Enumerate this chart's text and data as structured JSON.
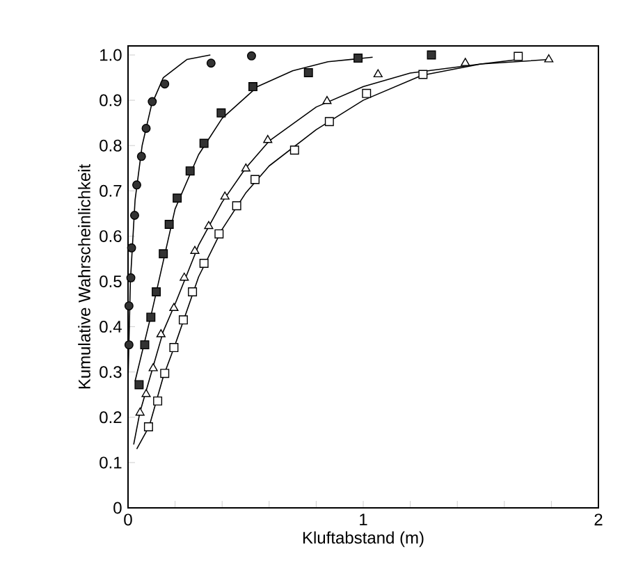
{
  "chart_data": {
    "type": "scatter",
    "xlabel": "Kluftabstand (m)",
    "ylabel": "Kumulative Wahrscheinlichkeit",
    "xlim": [
      0,
      2
    ],
    "ylim": [
      0,
      1.02
    ],
    "xticks": [
      0,
      {
        "value": 0.2,
        "label": null
      },
      {
        "value": 0.4,
        "label": null
      },
      {
        "value": 0.6,
        "label": null
      },
      {
        "value": 0.8,
        "label": null
      },
      1,
      {
        "value": 1.2,
        "label": null
      },
      {
        "value": 1.4,
        "label": null
      },
      {
        "value": 1.6,
        "label": null
      },
      {
        "value": 1.8,
        "label": null
      },
      2
    ],
    "yticks": [
      0,
      0.1,
      0.2,
      0.3,
      0.4,
      0.5,
      0.6,
      0.7,
      0.8,
      0.9,
      {
        "value": 1.0,
        "label": "1.0"
      }
    ],
    "series": [
      {
        "type": "line",
        "color": "#000000",
        "x": [
          0.0,
          0.01,
          0.03,
          0.06,
          0.1,
          0.15,
          0.25,
          0.35
        ],
        "values": [
          0.28,
          0.5,
          0.68,
          0.8,
          0.89,
          0.95,
          0.99,
          1.0
        ]
      },
      {
        "type": "line",
        "color": "#000000",
        "x": [
          0.03,
          0.1,
          0.2,
          0.3,
          0.4,
          0.55,
          0.7,
          0.85,
          1.04
        ],
        "values": [
          0.28,
          0.43,
          0.66,
          0.78,
          0.86,
          0.93,
          0.965,
          0.985,
          0.995
        ]
      },
      {
        "type": "line",
        "color": "#000000",
        "x": [
          0.024,
          0.05,
          0.1,
          0.15,
          0.2,
          0.3,
          0.4,
          0.5,
          0.6,
          0.8,
          1.0,
          1.2,
          1.5,
          1.79
        ],
        "values": [
          0.14,
          0.21,
          0.3,
          0.39,
          0.45,
          0.58,
          0.675,
          0.75,
          0.81,
          0.885,
          0.93,
          0.96,
          0.98,
          0.99
        ]
      },
      {
        "type": "line",
        "color": "#000000",
        "x": [
          0.037,
          0.09,
          0.15,
          0.2,
          0.3,
          0.4,
          0.5,
          0.6,
          0.8,
          1.0,
          1.25,
          1.5,
          1.66
        ],
        "values": [
          0.13,
          0.18,
          0.29,
          0.36,
          0.51,
          0.615,
          0.695,
          0.755,
          0.835,
          0.9,
          0.955,
          0.98,
          0.99
        ]
      },
      {
        "marker": "circle",
        "color": "#333333",
        "x": [
          0.004,
          0.004,
          0.012,
          0.015,
          0.028,
          0.037,
          0.057,
          0.077,
          0.103,
          0.156,
          0.353,
          0.525
        ],
        "values": [
          0.36,
          0.446,
          0.508,
          0.574,
          0.646,
          0.713,
          0.776,
          0.838,
          0.897,
          0.936,
          0.982,
          0.998
        ]
      },
      {
        "marker": "square",
        "color": "#333333",
        "x": [
          0.047,
          0.071,
          0.097,
          0.12,
          0.15,
          0.175,
          0.209,
          0.264,
          0.323,
          0.396,
          0.531,
          0.767,
          0.978,
          1.29
        ],
        "values": [
          0.272,
          0.36,
          0.421,
          0.477,
          0.561,
          0.626,
          0.684,
          0.744,
          0.805,
          0.872,
          0.93,
          0.961,
          0.993,
          1.0
        ]
      },
      {
        "marker": "triangle",
        "color": "#ffffff",
        "x": [
          0.051,
          0.077,
          0.107,
          0.14,
          0.195,
          0.239,
          0.284,
          0.343,
          0.412,
          0.501,
          0.594,
          0.846,
          1.063,
          1.434,
          1.789
        ],
        "values": [
          0.21,
          0.251,
          0.308,
          0.383,
          0.441,
          0.508,
          0.567,
          0.622,
          0.687,
          0.749,
          0.812,
          0.898,
          0.957,
          0.982,
          0.99
        ]
      },
      {
        "marker": "square",
        "color": "#ffffff",
        "x": [
          0.087,
          0.126,
          0.156,
          0.195,
          0.235,
          0.274,
          0.323,
          0.387,
          0.462,
          0.54,
          0.708,
          0.856,
          1.014,
          1.254,
          1.659
        ],
        "values": [
          0.179,
          0.236,
          0.297,
          0.354,
          0.415,
          0.477,
          0.54,
          0.605,
          0.667,
          0.725,
          0.79,
          0.853,
          0.915,
          0.957,
          0.997
        ]
      }
    ]
  }
}
